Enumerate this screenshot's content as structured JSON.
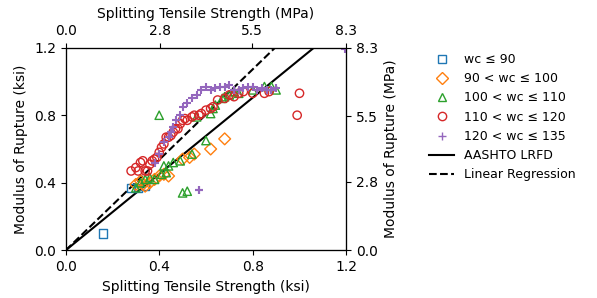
{
  "chart_data": {
    "type": "scatter",
    "xlabel": "Splitting Tensile Strength (ksi)",
    "ylabel": "Modulus of Rupture (ksi)",
    "x2label": "Splitting Tensile Strength (MPa)",
    "y2label": "Modulus of Rupture (MPa)",
    "xlim": [
      0.0,
      1.2
    ],
    "ylim": [
      0.0,
      1.2
    ],
    "xticks": [
      {
        "value": 0,
        "label": "0.0"
      },
      0.4,
      0.8,
      1.2
    ],
    "yticks": [
      {
        "value": 0,
        "label": "0.0"
      },
      0.4,
      0.8,
      1.2
    ],
    "x2lim": [
      0,
      8.3
    ],
    "x2ticks": [
      {
        "value": 0,
        "label": "0.0"
      },
      2.8,
      5.5,
      8.3
    ],
    "y2lim": [
      0,
      8.3
    ],
    "y2ticks": [
      {
        "value": 0,
        "label": "0.0"
      },
      2.8,
      5.5,
      8.3
    ],
    "legend": "upper left",
    "series": [
      {
        "name": "wc ≤ 90",
        "marker": "square",
        "x": [
          0.16,
          0.28,
          0.31,
          0.34
        ],
        "values": [
          0.1,
          0.37,
          0.37,
          0.38
        ]
      },
      {
        "name": "90 < wc ≤ 100",
        "marker": "diamond",
        "x": [
          0.3,
          0.32,
          0.33,
          0.34,
          0.36,
          0.38,
          0.4,
          0.42,
          0.44,
          0.5,
          0.53,
          0.55,
          0.62,
          0.68
        ],
        "values": [
          0.39,
          0.41,
          0.39,
          0.38,
          0.4,
          0.42,
          0.44,
          0.45,
          0.44,
          0.54,
          0.55,
          0.57,
          0.6,
          0.66
        ]
      },
      {
        "name": "100 < wc ≤ 110",
        "marker": "triangle",
        "x": [
          0.3,
          0.32,
          0.34,
          0.36,
          0.38,
          0.4,
          0.41,
          0.42,
          0.43,
          0.44,
          0.46,
          0.49,
          0.5,
          0.52,
          0.54,
          0.56,
          0.6,
          0.62,
          0.63,
          0.64,
          0.67,
          0.68,
          0.7,
          0.72,
          0.74,
          0.8,
          0.85,
          0.88,
          0.9
        ],
        "values": [
          0.37,
          0.4,
          0.42,
          0.43,
          0.42,
          0.8,
          0.45,
          0.5,
          0.46,
          0.5,
          0.52,
          0.53,
          0.34,
          0.35,
          0.57,
          0.79,
          0.65,
          0.81,
          0.84,
          0.86,
          0.9,
          0.91,
          0.92,
          0.94,
          0.93,
          0.95,
          0.97,
          0.97,
          0.95
        ]
      },
      {
        "name": "110 < wc ≤ 120",
        "marker": "circle",
        "x": [
          0.28,
          0.3,
          0.31,
          0.32,
          0.33,
          0.34,
          0.35,
          0.36,
          0.37,
          0.38,
          0.39,
          0.4,
          0.41,
          0.42,
          0.43,
          0.44,
          0.45,
          0.46,
          0.47,
          0.48,
          0.49,
          0.5,
          0.51,
          0.52,
          0.54,
          0.55,
          0.57,
          0.58,
          0.6,
          0.62,
          0.63,
          0.65,
          0.68,
          0.7,
          0.72,
          0.74,
          0.76,
          0.8,
          0.85,
          0.87,
          0.99,
          1.0
        ],
        "values": [
          0.47,
          0.49,
          0.47,
          0.52,
          0.53,
          0.47,
          0.47,
          0.51,
          0.53,
          0.54,
          0.55,
          0.58,
          0.61,
          0.63,
          0.67,
          0.67,
          0.68,
          0.7,
          0.72,
          0.72,
          0.75,
          0.77,
          0.78,
          0.77,
          0.79,
          0.8,
          0.8,
          0.81,
          0.83,
          0.84,
          0.85,
          0.89,
          0.9,
          0.92,
          0.91,
          0.93,
          0.94,
          0.93,
          0.93,
          0.94,
          0.8,
          0.93
        ]
      },
      {
        "name": "120 < wc ≤ 135",
        "marker": "plus",
        "x": [
          0.38,
          0.4,
          0.42,
          0.44,
          0.45,
          0.46,
          0.47,
          0.49,
          0.5,
          0.52,
          0.54,
          0.56,
          0.57,
          0.58,
          0.6,
          0.62,
          0.64,
          0.66,
          0.68,
          0.7,
          0.72,
          0.74,
          0.76,
          0.78,
          0.8,
          0.82,
          0.84,
          0.86,
          0.88,
          0.9,
          0.57,
          1.195
        ],
        "values": [
          0.52,
          0.57,
          0.64,
          0.67,
          0.7,
          0.73,
          0.77,
          0.8,
          0.85,
          0.87,
          0.9,
          0.92,
          0.36,
          0.95,
          0.97,
          0.95,
          0.96,
          0.97,
          0.97,
          0.98,
          0.95,
          0.95,
          0.96,
          0.97,
          0.97,
          0.95,
          0.96,
          0.95,
          0.95,
          0.96,
          0.36,
          1.195
        ]
      },
      {
        "name": "AASHTO LRFD",
        "type": "line",
        "slope": 1.13,
        "color": "#000000",
        "line_style": "solid"
      },
      {
        "name": "Linear Regression",
        "type": "line",
        "slope": 1.34,
        "color": "#000000",
        "line_style": "dashed"
      }
    ]
  }
}
